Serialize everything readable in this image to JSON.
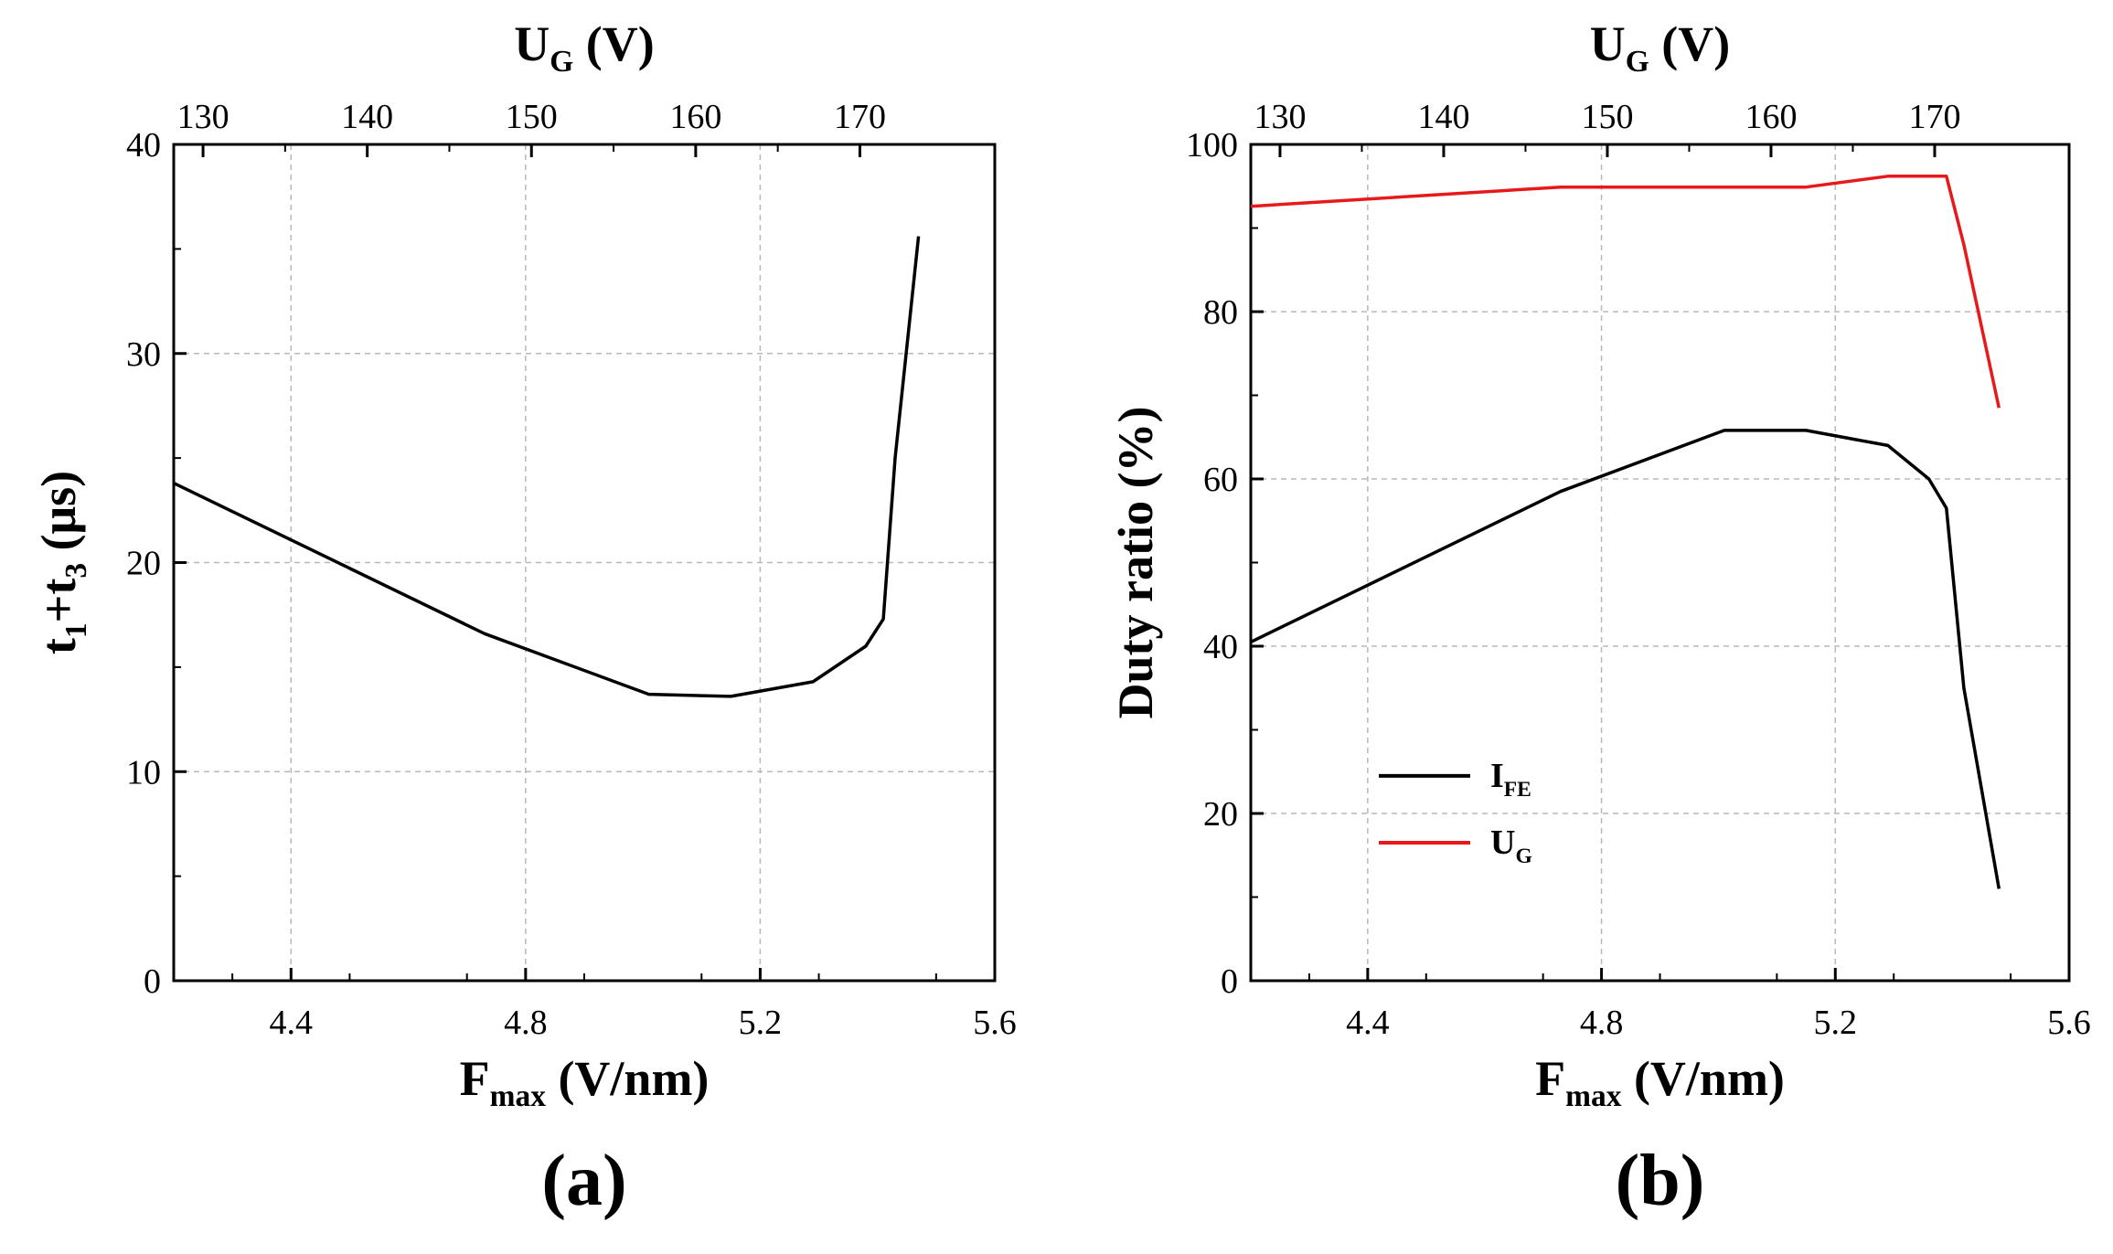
{
  "chart_data": [
    {
      "type": "line",
      "panel_label": "(a)",
      "xlabel": {
        "main": "F",
        "sub": "max",
        "rest": " (V/nm)"
      },
      "ylabel": {
        "p1": "t",
        "s1": "1",
        "p2": "+t",
        "s2": "3",
        "p3": " (μs)"
      },
      "top_xlabel": {
        "main": "U",
        "sub": "G",
        "rest": " (V)"
      },
      "xlim": [
        4.2,
        5.6
      ],
      "ylim": [
        0,
        40
      ],
      "xticks": [
        4.4,
        4.8,
        5.2,
        5.6
      ],
      "xtick_labels": [
        "4.4",
        "4.8",
        "5.2",
        "5.6"
      ],
      "yticks": [
        0,
        10,
        20,
        30,
        40
      ],
      "ytick_labels": [
        "0",
        "10",
        "20",
        "30",
        "40"
      ],
      "top_xticks": [
        4.25,
        4.53,
        4.81,
        5.09,
        5.37
      ],
      "top_xtick_labels": [
        "130",
        "140",
        "150",
        "160",
        "170"
      ],
      "grid": true,
      "series": [
        {
          "color": "#000000",
          "x": [
            4.2,
            4.73,
            5.01,
            5.15,
            5.29,
            5.38,
            5.41,
            5.43,
            5.47
          ],
          "y": [
            23.8,
            16.6,
            13.7,
            13.6,
            14.3,
            16.0,
            17.3,
            25.0,
            35.6
          ]
        }
      ]
    },
    {
      "type": "line",
      "panel_label": "(b)",
      "xlabel": {
        "main": "F",
        "sub": "max",
        "rest": " (V/nm)"
      },
      "ylabel": {
        "text": "Duty ratio (%)"
      },
      "top_xlabel": {
        "main": "U",
        "sub": "G",
        "rest": " (V)"
      },
      "xlim": [
        4.2,
        5.6
      ],
      "ylim": [
        0,
        100
      ],
      "xticks": [
        4.4,
        4.8,
        5.2,
        5.6
      ],
      "xtick_labels": [
        "4.4",
        "4.8",
        "5.2",
        "5.6"
      ],
      "yticks": [
        0,
        20,
        40,
        60,
        80,
        100
      ],
      "ytick_labels": [
        "0",
        "20",
        "40",
        "60",
        "80",
        "100"
      ],
      "top_xticks": [
        4.25,
        4.53,
        4.81,
        5.09,
        5.37
      ],
      "top_xtick_labels": [
        "130",
        "140",
        "150",
        "160",
        "170"
      ],
      "grid": true,
      "legend_position": "lower-left",
      "series": [
        {
          "name": "I",
          "name_sub": "FE",
          "color": "#000000",
          "x": [
            4.2,
            4.73,
            5.01,
            5.15,
            5.29,
            5.36,
            5.39,
            5.42,
            5.48
          ],
          "y": [
            40.5,
            58.5,
            65.8,
            65.8,
            64.0,
            60.0,
            56.5,
            35.0,
            11.0
          ]
        },
        {
          "name": "U",
          "name_sub": "G",
          "color": "#e8191b",
          "x": [
            4.2,
            4.73,
            5.01,
            5.15,
            5.29,
            5.39,
            5.42,
            5.48
          ],
          "y": [
            92.6,
            94.9,
            94.9,
            94.9,
            96.2,
            96.2,
            88.0,
            68.5
          ]
        }
      ]
    }
  ]
}
